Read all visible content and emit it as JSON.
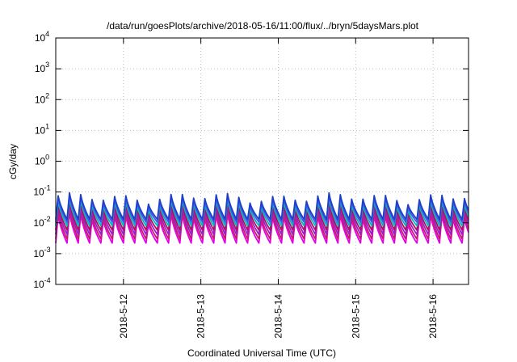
{
  "chart_data": {
    "type": "line",
    "title": "/data/run/goesPlots/archive/2018-05-16/11:00/flux/../bryn/5daysMars.plot",
    "xlabel": "Coordinated Universal Time (UTC)",
    "ylabel": "cGy/day",
    "yscale": "log",
    "ylim": [
      0.0001,
      10000
    ],
    "y_ticks": [
      {
        "value": 0.0001,
        "base": "10",
        "exp": "-4"
      },
      {
        "value": 0.001,
        "base": "10",
        "exp": "-3"
      },
      {
        "value": 0.01,
        "base": "10",
        "exp": "-2"
      },
      {
        "value": 0.1,
        "base": "10",
        "exp": "-1"
      },
      {
        "value": 1,
        "base": "10",
        "exp": "0"
      },
      {
        "value": 10,
        "base": "10",
        "exp": "1"
      },
      {
        "value": 100,
        "base": "10",
        "exp": "2"
      },
      {
        "value": 1000,
        "base": "10",
        "exp": "3"
      },
      {
        "value": 10000,
        "base": "10",
        "exp": "4"
      }
    ],
    "xlim": [
      "2018-05-11T03:00",
      "2018-05-16T11:00"
    ],
    "x_ticks": [
      {
        "value": "2018-05-12T00:00",
        "label": "2018-5-12"
      },
      {
        "value": "2018-05-13T00:00",
        "label": "2018-5-13"
      },
      {
        "value": "2018-05-14T00:00",
        "label": "2018-5-14"
      },
      {
        "value": "2018-05-15T00:00",
        "label": "2018-5-15"
      },
      {
        "value": "2018-05-16T00:00",
        "label": "2018-5-16"
      }
    ],
    "grid": true,
    "series_colors": [
      "#e600e6",
      "#c41e6a",
      "#9b1ed0",
      "#b01060",
      "#00b8b8",
      "#4455ee",
      "#1e40c8"
    ],
    "series_levels": [
      {
        "low": 0.0022,
        "high": 0.016
      },
      {
        "low": 0.003,
        "high": 0.021
      },
      {
        "low": 0.0042,
        "high": 0.028
      },
      {
        "low": 0.0058,
        "high": 0.036
      },
      {
        "low": 0.008,
        "high": 0.046
      },
      {
        "low": 0.0105,
        "high": 0.058
      },
      {
        "low": 0.013,
        "high": 0.07
      }
    ]
  }
}
